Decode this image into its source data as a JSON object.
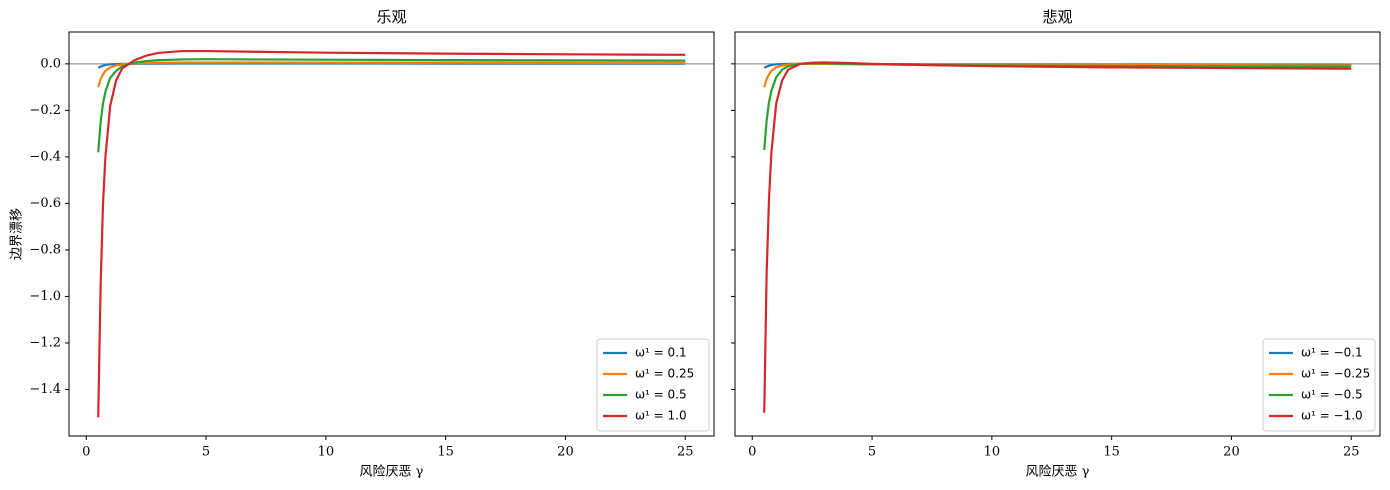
{
  "chart_data": [
    {
      "type": "line",
      "title": "乐观",
      "xlabel": "风险厌恶 γ",
      "ylabel": "边界漂移",
      "x": [
        0.5,
        0.6,
        0.7,
        0.8,
        1,
        1.25,
        1.5,
        2,
        2.5,
        3,
        4,
        5,
        7,
        10,
        15,
        20,
        25
      ],
      "series": [
        {
          "name": "ω¹ = 0.1",
          "color": "#1f77b4",
          "values": [
            -0.017,
            -0.012,
            -0.008,
            -0.005,
            -0.002,
            -0.001,
            0,
            0.0005,
            0.001,
            0.001,
            0.0015,
            0.0015,
            0.0015,
            0.0013,
            0.0012,
            0.0011,
            0.001
          ]
        },
        {
          "name": "ω¹ = 0.25",
          "color": "#ff7f0e",
          "values": [
            -0.1,
            -0.065,
            -0.045,
            -0.03,
            -0.015,
            -0.007,
            -0.002,
            0.002,
            0.004,
            0.005,
            0.006,
            0.006,
            0.006,
            0.0055,
            0.005,
            0.0045,
            0.004
          ]
        },
        {
          "name": "ω¹ = 0.5",
          "color": "#2ca02c",
          "values": [
            -0.38,
            -0.25,
            -0.17,
            -0.12,
            -0.06,
            -0.03,
            -0.01,
            0.005,
            0.012,
            0.016,
            0.019,
            0.02,
            0.019,
            0.018,
            0.016,
            0.015,
            0.014
          ]
        },
        {
          "name": "ω¹ = 1.0",
          "color": "#d62728",
          "values": [
            -1.52,
            -0.95,
            -0.6,
            -0.4,
            -0.18,
            -0.07,
            -0.02,
            0.015,
            0.035,
            0.047,
            0.055,
            0.055,
            0.052,
            0.048,
            0.044,
            0.041,
            0.039
          ]
        }
      ],
      "hlines": [
        0
      ],
      "xlim": [
        -0.72,
        26.2
      ],
      "ylim": [
        -1.6,
        0.137
      ],
      "xticks": [
        0,
        5,
        10,
        15,
        20,
        25
      ],
      "yticks": [
        {
          "value": -1.4,
          "label": "−1.4"
        },
        {
          "value": -1.2,
          "label": "−1.2"
        },
        {
          "value": -1.0,
          "label": "−1.0"
        },
        {
          "value": -0.8,
          "label": "−0.8"
        },
        {
          "value": -0.6,
          "label": "−0.6"
        },
        {
          "value": -0.4,
          "label": "−0.4"
        },
        {
          "value": -0.2,
          "label": "−0.2"
        },
        {
          "value": 0,
          "label": "0.0"
        }
      ],
      "legend": "lower right"
    },
    {
      "type": "line",
      "title": "悲观",
      "xlabel": "风险厌恶 γ",
      "x": [
        0.5,
        0.6,
        0.7,
        0.8,
        1,
        1.25,
        1.5,
        2,
        2.5,
        3,
        4,
        5,
        7,
        10,
        15,
        20,
        25
      ],
      "series": [
        {
          "name": "ω¹ = −0.1",
          "color": "#1f77b4",
          "values": [
            -0.017,
            -0.012,
            -0.008,
            -0.005,
            -0.002,
            -0.001,
            0,
            0,
            0,
            0,
            -0.0005,
            -0.001,
            -0.0015,
            -0.002,
            -0.0025,
            -0.003,
            -0.003
          ]
        },
        {
          "name": "ω¹ = −0.25",
          "color": "#ff7f0e",
          "values": [
            -0.1,
            -0.065,
            -0.045,
            -0.03,
            -0.015,
            -0.007,
            -0.003,
            0,
            0,
            0,
            -0.001,
            -0.002,
            -0.003,
            -0.004,
            -0.005,
            -0.006,
            -0.007
          ]
        },
        {
          "name": "ω¹ = −0.5",
          "color": "#2ca02c",
          "values": [
            -0.37,
            -0.245,
            -0.165,
            -0.115,
            -0.058,
            -0.025,
            -0.01,
            0,
            0.002,
            0.002,
            0,
            -0.002,
            -0.004,
            -0.007,
            -0.009,
            -0.011,
            -0.012
          ]
        },
        {
          "name": "ω¹ = −1.0",
          "color": "#d62728",
          "values": [
            -1.5,
            -0.9,
            -0.58,
            -0.38,
            -0.17,
            -0.07,
            -0.025,
            0,
            0.005,
            0.006,
            0.004,
            0,
            -0.005,
            -0.01,
            -0.015,
            -0.018,
            -0.021
          ]
        }
      ],
      "hlines": [
        0
      ],
      "xlim": [
        -0.72,
        26.2
      ],
      "ylim": [
        -1.6,
        0.137
      ],
      "xticks": [
        0,
        5,
        10,
        15,
        20,
        25
      ],
      "yticks": [
        -1.4,
        -1.2,
        -1.0,
        -0.8,
        -0.6,
        -0.4,
        -0.2,
        0
      ],
      "legend": "lower right"
    }
  ]
}
